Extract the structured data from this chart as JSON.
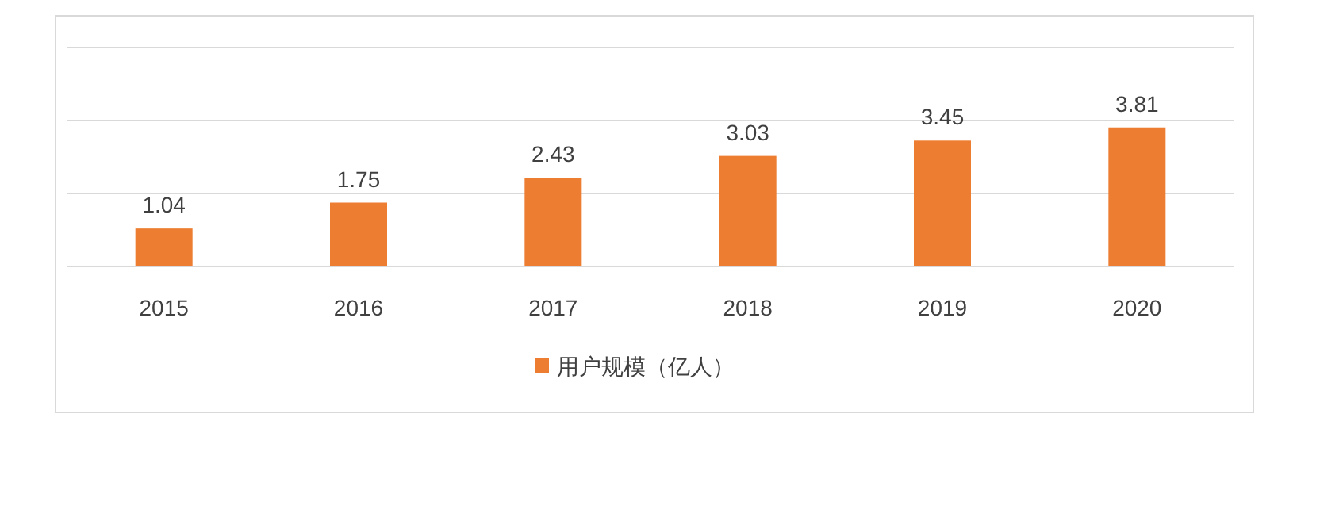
{
  "chart_data": {
    "type": "bar",
    "categories": [
      "2015",
      "2016",
      "2017",
      "2018",
      "2019",
      "2020"
    ],
    "series": [
      {
        "name": "用户规模（亿人）",
        "color": "#ed7d31",
        "values": [
          1.04,
          1.75,
          2.43,
          3.03,
          3.45,
          3.81
        ]
      }
    ],
    "ylim": [
      0,
      6
    ],
    "yticks": [
      {
        "value": 0,
        "label": null
      },
      {
        "value": 2,
        "label": null
      },
      {
        "value": 4,
        "label": null
      },
      {
        "value": 6,
        "label": null
      }
    ],
    "grid": "y",
    "tick_labels": "x",
    "legend": "bottom",
    "data_labels": true
  }
}
